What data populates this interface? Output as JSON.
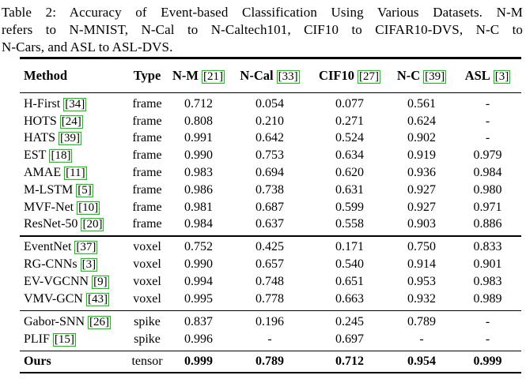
{
  "caption": {
    "lines": [
      "Table 2: Accuracy of Event-based Classification Using Various Datasets. N-M",
      "refers to N-MNIST, N-Cal to N-Caltech101, CIF10 to CIFAR10-DVS, N-C to",
      "N-Cars, and ASL to ASL-DVS."
    ]
  },
  "colors": {
    "cite_box_border": "#00cc00",
    "text": "#000000",
    "background": "#ffffff"
  },
  "table": {
    "columns": [
      {
        "label": "Method"
      },
      {
        "label": "Type"
      },
      {
        "label": "N-M",
        "cite": "21"
      },
      {
        "label": "N-Cal",
        "cite": "33"
      },
      {
        "label": "CIF10",
        "cite": "27"
      },
      {
        "label": "N-C",
        "cite": "39"
      },
      {
        "label": "ASL",
        "cite": "3"
      }
    ],
    "groups": [
      {
        "rows": [
          {
            "method": "H-First",
            "cite": "34",
            "type": "frame",
            "values": [
              "0.712",
              "0.054",
              "0.077",
              "0.561",
              "-"
            ]
          },
          {
            "method": "HOTS",
            "cite": "24",
            "type": "frame",
            "values": [
              "0.808",
              "0.210",
              "0.271",
              "0.624",
              "-"
            ]
          },
          {
            "method": "HATS",
            "cite": "39",
            "type": "frame",
            "values": [
              "0.991",
              "0.642",
              "0.524",
              "0.902",
              "-"
            ]
          },
          {
            "method": "EST",
            "cite": "18",
            "type": "frame",
            "values": [
              "0.990",
              "0.753",
              "0.634",
              "0.919",
              "0.979"
            ]
          },
          {
            "method": "AMAE",
            "cite": "11",
            "type": "frame",
            "values": [
              "0.983",
              "0.694",
              "0.620",
              "0.936",
              "0.984"
            ]
          },
          {
            "method": "M-LSTM",
            "cite": "5",
            "type": "frame",
            "values": [
              "0.986",
              "0.738",
              "0.631",
              "0.927",
              "0.980"
            ]
          },
          {
            "method": "MVF-Net",
            "cite": "10",
            "type": "frame",
            "values": [
              "0.981",
              "0.687",
              "0.599",
              "0.927",
              "0.971"
            ]
          },
          {
            "method": "ResNet-50",
            "cite": "20",
            "type": "frame",
            "values": [
              "0.984",
              "0.637",
              "0.558",
              "0.903",
              "0.886"
            ]
          }
        ]
      },
      {
        "rows": [
          {
            "method": "EventNet",
            "cite": "37",
            "type": "voxel",
            "values": [
              "0.752",
              "0.425",
              "0.171",
              "0.750",
              "0.833"
            ]
          },
          {
            "method": "RG-CNNs",
            "cite": "3",
            "type": "voxel",
            "values": [
              "0.990",
              "0.657",
              "0.540",
              "0.914",
              "0.901"
            ]
          },
          {
            "method": "EV-VGCNN",
            "cite": "9",
            "type": "voxel",
            "values": [
              "0.994",
              "0.748",
              "0.651",
              "0.953",
              "0.983"
            ]
          },
          {
            "method": "VMV-GCN",
            "cite": "43",
            "type": "voxel",
            "values": [
              "0.995",
              "0.778",
              "0.663",
              "0.932",
              "0.989"
            ]
          }
        ]
      },
      {
        "rows": [
          {
            "method": "Gabor-SNN",
            "cite": "26",
            "type": "spike",
            "values": [
              "0.837",
              "0.196",
              "0.245",
              "0.789",
              "-"
            ]
          },
          {
            "method": "PLIF",
            "cite": "15",
            "type": "spike",
            "values": [
              "0.996",
              "-",
              "0.697",
              "-",
              "-"
            ]
          }
        ]
      },
      {
        "rows": [
          {
            "method": "Ours",
            "type": "tensor",
            "values": [
              "0.999",
              "0.789",
              "0.712",
              "0.954",
              "0.999"
            ]
          }
        ]
      }
    ]
  }
}
